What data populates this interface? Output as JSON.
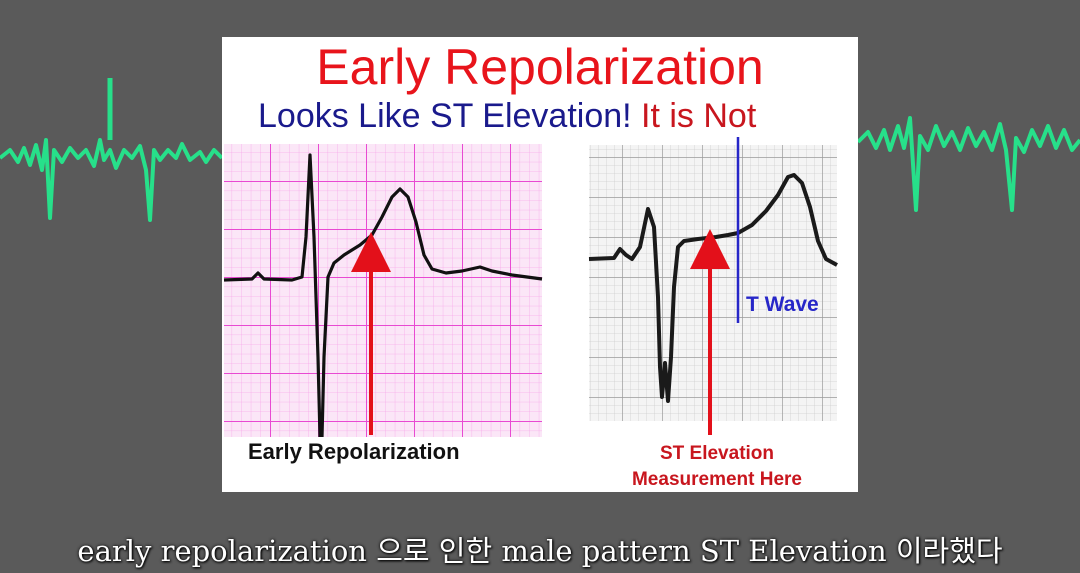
{
  "slide": {
    "title": "Early Repolarization",
    "subtitle_blue": "Looks Like ST Elevation! ",
    "subtitle_red": "It is Not",
    "left_strip_label": "Early Repolarization",
    "right_strip_label_line1": "ST Elevation",
    "right_strip_label_line2": "Measurement Here",
    "t_wave_label": "T Wave"
  },
  "caption": "early repolarization 으로 인한 male pattern ST Elevation 이라했다",
  "colors": {
    "background": "#5a5a5a",
    "monitor_trace": "#27e08a",
    "title_red": "#e8141b",
    "subtitle_blue": "#1a1a8c",
    "pink_grid": "#f06ad8",
    "arrow_red": "#e3101a",
    "t_wave_blue": "#2626c8"
  }
}
